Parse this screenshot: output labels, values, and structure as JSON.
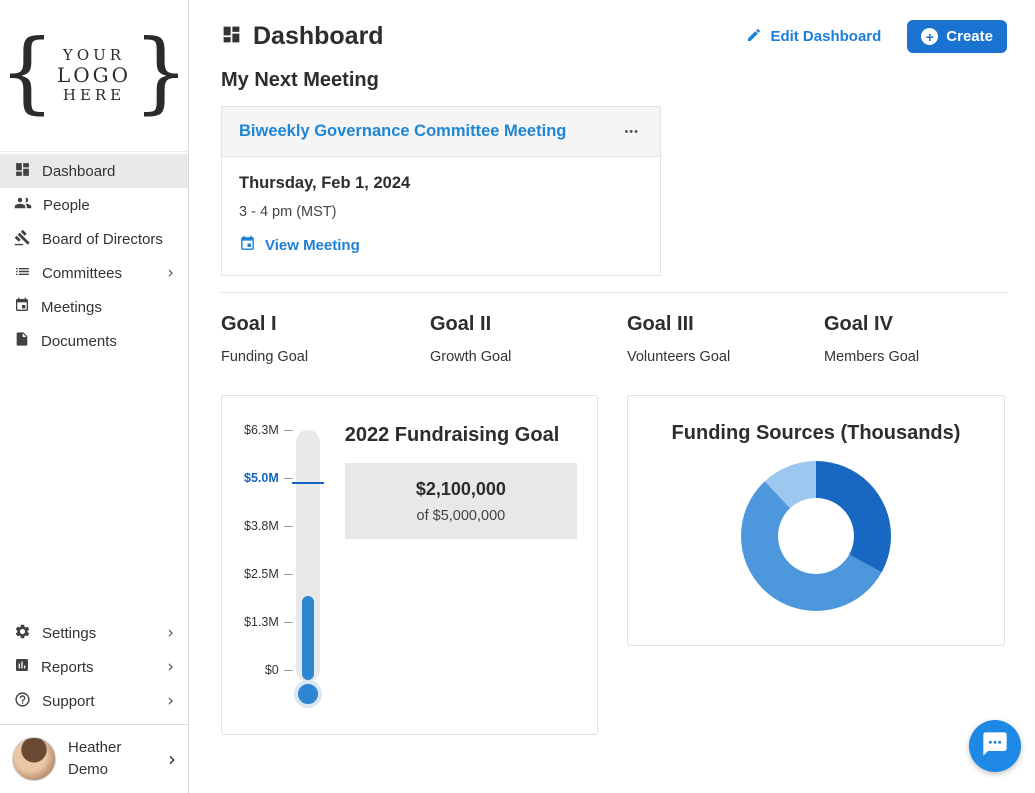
{
  "sidebar": {
    "logo": {
      "brace_left": "{",
      "line1": "YOUR",
      "line2": "LOGO",
      "line3": "HERE",
      "brace_right": "}"
    },
    "items": [
      {
        "label": "Dashboard"
      },
      {
        "label": "People"
      },
      {
        "label": "Board of Directors"
      },
      {
        "label": "Committees"
      },
      {
        "label": "Meetings"
      },
      {
        "label": "Documents"
      }
    ],
    "footer_items": [
      {
        "label": "Settings"
      },
      {
        "label": "Reports"
      },
      {
        "label": "Support"
      }
    ],
    "user": {
      "name_line1": "Heather",
      "name_line2": "Demo"
    }
  },
  "icons": {
    "chevron": "›",
    "menu_dots": "•••",
    "plus": "+"
  },
  "header": {
    "title": "Dashboard",
    "edit_label": "Edit Dashboard",
    "create_label": "Create"
  },
  "meeting": {
    "section_title": "My Next Meeting",
    "title": "Biweekly Governance Committee Meeting",
    "date": "Thursday, Feb 1, 2024",
    "time": "3 - 4 pm (MST)",
    "view_label": "View Meeting"
  },
  "goals": [
    {
      "title": "Goal I",
      "subtitle": "Funding Goal"
    },
    {
      "title": "Goal II",
      "subtitle": "Growth Goal"
    },
    {
      "title": "Goal III",
      "subtitle": "Volunteers Goal"
    },
    {
      "title": "Goal IV",
      "subtitle": "Members Goal"
    }
  ],
  "fundraising": {
    "title": "2022 Fundraising Goal",
    "amount": "$2,100,000",
    "of_total": "of $5,000,000",
    "ticks": [
      "$6.3M",
      "$5.0M",
      "$3.8M",
      "$2.5M",
      "$1.3M",
      "$0"
    ],
    "fill_percent": 33.3,
    "goal_line_percent": 79.4
  },
  "funding_sources": {
    "title": "Funding Sources (Thousands)",
    "segments": [
      {
        "name": "dark-blue",
        "value": 33,
        "color": "#1867c0"
      },
      {
        "name": "mid-blue",
        "value": 55,
        "color": "#4d97dd"
      },
      {
        "name": "light-blue",
        "value": 12,
        "color": "#9cc7ef"
      }
    ]
  },
  "colors": {
    "accent": "#1e7fd6",
    "goal_line": "#1565c0",
    "thermo_fill": "#2e86d3"
  },
  "chart_data": [
    {
      "type": "gauge",
      "title": "2022 Fundraising Goal",
      "current": 2100000,
      "goal": 5000000,
      "axis_max": 6300000,
      "tick_labels": [
        "$6.3M",
        "$5.0M",
        "$3.8M",
        "$2.5M",
        "$1.3M",
        "$0"
      ],
      "orientation": "vertical-thermometer"
    },
    {
      "type": "pie",
      "title": "Funding Sources (Thousands)",
      "values_percent": [
        33,
        55,
        12
      ],
      "colors": [
        "#1867c0",
        "#4d97dd",
        "#9cc7ef"
      ],
      "legend": "none",
      "donut": true
    }
  ]
}
